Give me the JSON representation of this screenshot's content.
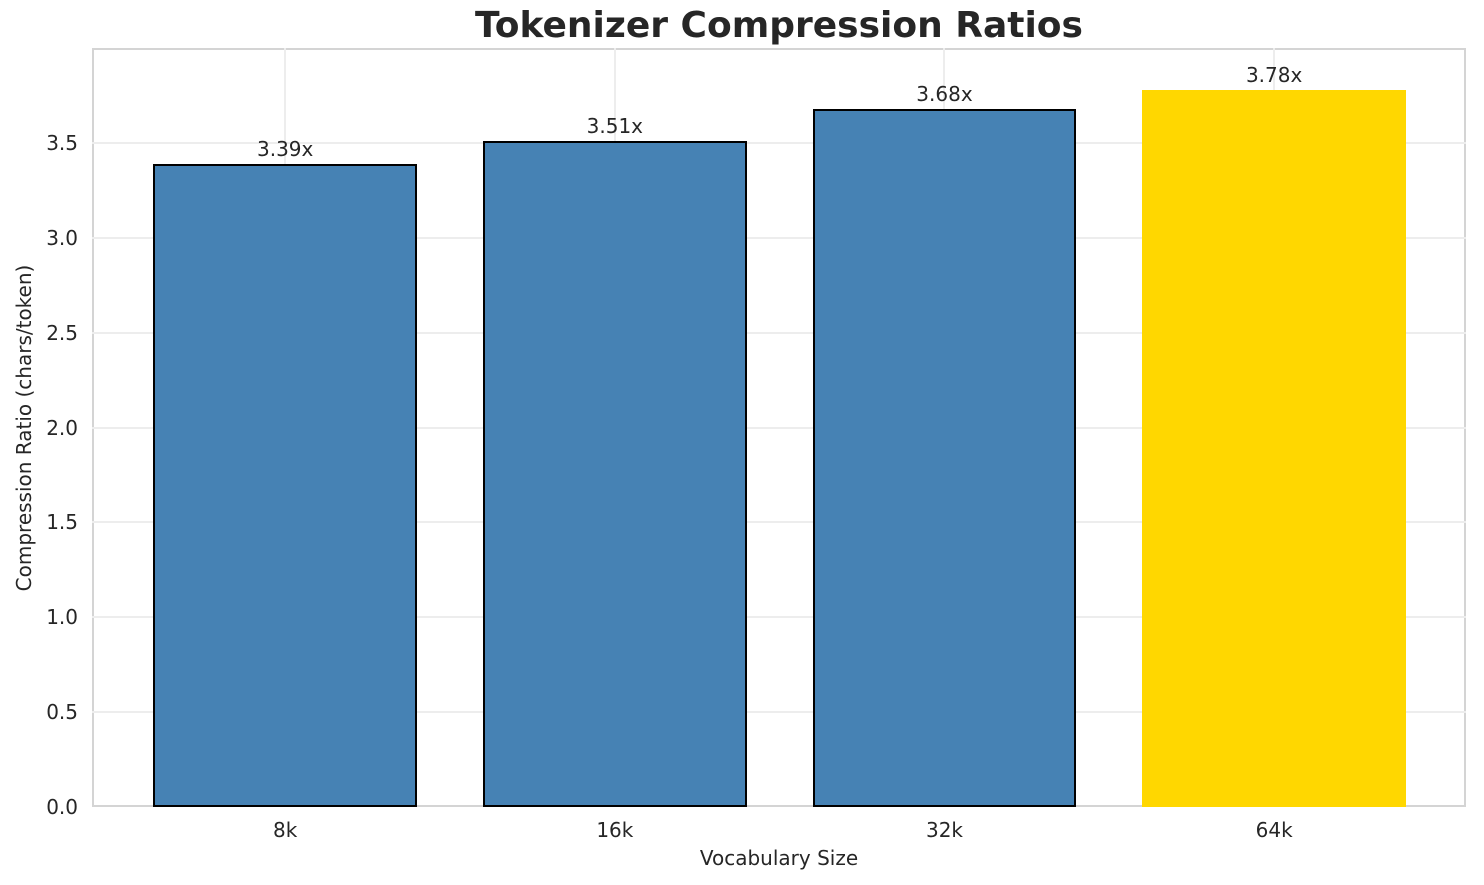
{
  "chart_data": {
    "type": "bar",
    "title": "Tokenizer Compression Ratios",
    "xlabel": "Vocabulary Size",
    "ylabel": "Compression Ratio (chars/token)",
    "categories": [
      "8k",
      "16k",
      "32k",
      "64k"
    ],
    "values": [
      3.39,
      3.51,
      3.68,
      3.78
    ],
    "value_labels": [
      "3.39x",
      "3.51x",
      "3.68x",
      "3.78x"
    ],
    "bar_colors": [
      "#4682b4",
      "#4682b4",
      "#4682b4",
      "#ffd700"
    ],
    "bar_edge_colors": [
      "#000000",
      "#000000",
      "#000000",
      "none"
    ],
    "highlighted_category": "64k",
    "ylim": [
      0,
      4.0
    ],
    "yticks": [
      0.0,
      0.5,
      1.0,
      1.5,
      2.0,
      2.5,
      3.0,
      3.5
    ],
    "ytick_labels": [
      "0.0",
      "0.5",
      "1.0",
      "1.5",
      "2.0",
      "2.5",
      "3.0",
      "3.5"
    ],
    "grid": true,
    "legend": "none",
    "background_color": "#ffffff",
    "grid_color": "#ededed",
    "spine_color": "#d4d4d4",
    "text_color": "#262626"
  }
}
